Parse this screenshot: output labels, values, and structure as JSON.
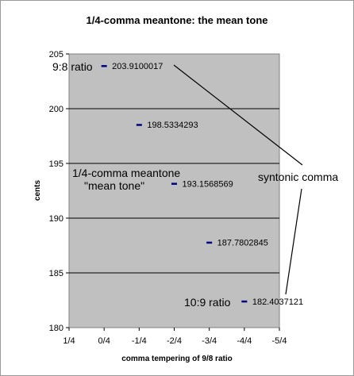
{
  "chart_data": {
    "type": "scatter",
    "title": "1/4-comma meantone: the mean tone",
    "xlabel": "comma tempering of 9/8 ratio",
    "ylabel": "cents",
    "x_categories": [
      "1/4",
      "0/4",
      "-1/4",
      "-2/4",
      "-3/4",
      "-4/4",
      "-5/4"
    ],
    "ylim": [
      180,
      205
    ],
    "yticks": [
      180,
      185,
      190,
      195,
      200,
      205
    ],
    "grid": "horizontal",
    "legend": "none",
    "marker_color": "#000080",
    "plot_background": "#c0c0c0",
    "points": [
      {
        "x": "0/4",
        "y": 203.91,
        "label": "203.9100017"
      },
      {
        "x": "-1/4",
        "y": 198.5334,
        "label": "198.5334293"
      },
      {
        "x": "-2/4",
        "y": 193.1569,
        "label": "193.1568569"
      },
      {
        "x": "-3/4",
        "y": 187.7803,
        "label": "187.7802845"
      },
      {
        "x": "-4/4",
        "y": 182.4037,
        "label": "182.4037121"
      }
    ],
    "annotations": {
      "ratio_9_8": "9:8 ratio",
      "meantone_line1": "1/4-comma meantone",
      "meantone_line2": "\"mean tone\"",
      "syntonic_comma": "syntonic comma",
      "ratio_10_9": "10:9 ratio"
    }
  }
}
